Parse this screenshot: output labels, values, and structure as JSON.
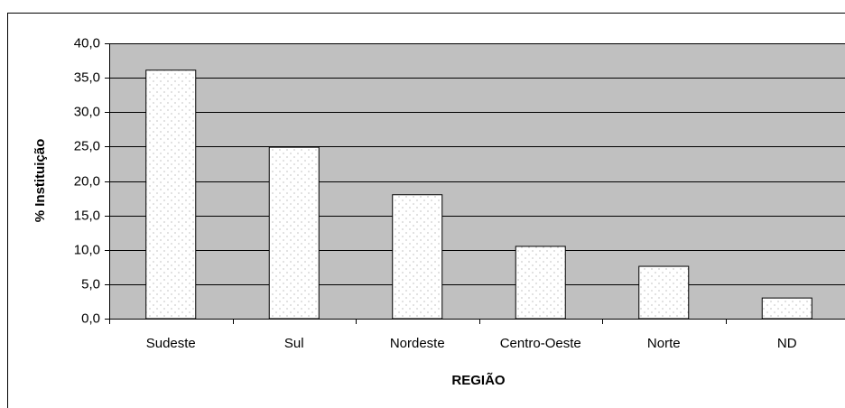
{
  "chart_data": {
    "type": "bar",
    "x_label": "REGIÃO",
    "y_label": "% Instituição",
    "categories": [
      "Sudeste",
      "Sul",
      "Nordeste",
      "Centro-Oeste",
      "Norte",
      "ND"
    ],
    "values": [
      36.1,
      24.9,
      18.0,
      10.5,
      7.6,
      3.0
    ],
    "color": "#ffffff",
    "background": "#c0c0c0",
    "ylim": [
      0,
      40
    ],
    "yticks": [
      {
        "value": 0,
        "label": "0,0"
      },
      {
        "value": 5,
        "label": "5,0"
      },
      {
        "value": 10,
        "label": "10,0"
      },
      {
        "value": 15,
        "label": "15,0"
      },
      {
        "value": 20,
        "label": "20,0"
      },
      {
        "value": 25,
        "label": "25,0"
      },
      {
        "value": 30,
        "label": "30,0"
      },
      {
        "value": 35,
        "label": "35,0"
      },
      {
        "value": 40,
        "label": "40,0"
      }
    ],
    "grid": true
  }
}
